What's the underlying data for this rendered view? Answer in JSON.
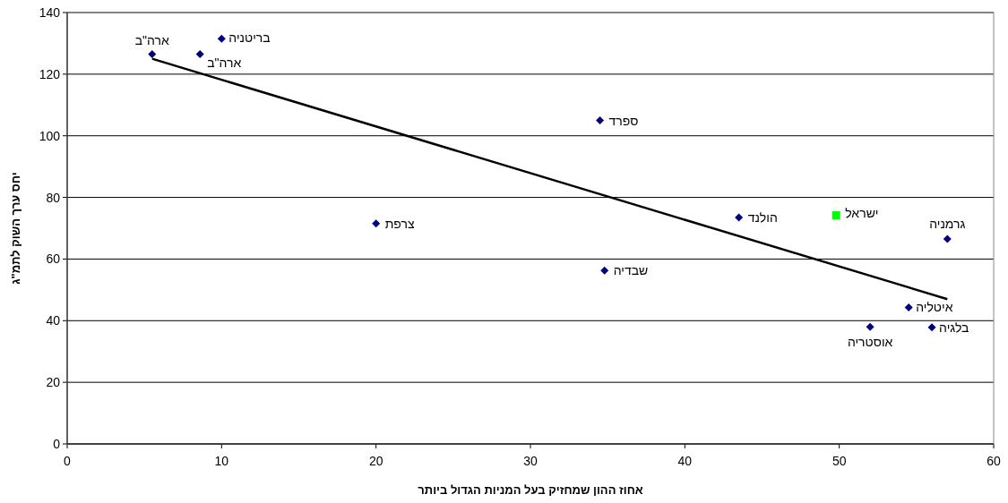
{
  "chart_data": {
    "type": "scatter",
    "xlabel": "אחוז ההון שמחזיק בעל המניות הגדול ביותר",
    "ylabel": "יחס ערך השוק לתמ\"ג",
    "xlim": [
      0,
      60
    ],
    "ylim": [
      0,
      140
    ],
    "xticks": [
      0,
      10,
      20,
      30,
      40,
      50,
      60
    ],
    "yticks": [
      0,
      20,
      40,
      60,
      80,
      100,
      120,
      140
    ],
    "grid": "y",
    "series": [
      {
        "name": "ארה\"ב",
        "color": "#000080",
        "marker": "diamond",
        "x": [
          5.5
        ],
        "values": [
          126.5
        ]
      },
      {
        "name": "ארה\"ב",
        "color": "#000080",
        "marker": "diamond",
        "x": [
          8.6
        ],
        "values": [
          126.5
        ]
      },
      {
        "name": "בריטניה",
        "color": "#000080",
        "marker": "diamond",
        "x": [
          10
        ],
        "values": [
          131.5
        ]
      },
      {
        "name": "ספרד",
        "color": "#000080",
        "marker": "diamond",
        "x": [
          34.5
        ],
        "values": [
          105
        ]
      },
      {
        "name": "צרפת",
        "color": "#000080",
        "marker": "diamond",
        "x": [
          20
        ],
        "values": [
          71.5
        ]
      },
      {
        "name": "הולנד",
        "color": "#000080",
        "marker": "diamond",
        "x": [
          43.5
        ],
        "values": [
          73.5
        ]
      },
      {
        "name": "ישראל",
        "color": "#00ff00",
        "marker": "square",
        "x": [
          49.8
        ],
        "values": [
          74.2
        ]
      },
      {
        "name": "גרמניה",
        "color": "#000080",
        "marker": "diamond",
        "x": [
          57
        ],
        "values": [
          66.5
        ]
      },
      {
        "name": "שבדיה",
        "color": "#000080",
        "marker": "diamond",
        "x": [
          34.8
        ],
        "values": [
          56.3
        ]
      },
      {
        "name": "איטליה",
        "color": "#000080",
        "marker": "diamond",
        "x": [
          54.5
        ],
        "values": [
          44.3
        ]
      },
      {
        "name": "אוסטריה",
        "color": "#000080",
        "marker": "diamond",
        "x": [
          52
        ],
        "values": [
          38
        ]
      },
      {
        "name": "בלגיה",
        "color": "#000080",
        "marker": "diamond",
        "x": [
          56
        ],
        "values": [
          37.8
        ]
      },
      {
        "type": "line",
        "color": "#000000",
        "marker": "none",
        "line_style": "solid",
        "x": [
          5.5,
          57
        ],
        "values": [
          125,
          47
        ]
      }
    ]
  }
}
